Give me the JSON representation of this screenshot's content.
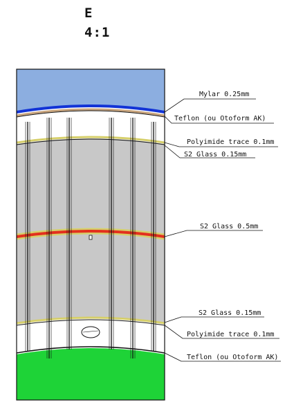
{
  "view": {
    "letter": "E",
    "scale": "4:1"
  },
  "colors": {
    "top_fill": "#8caee0",
    "bottom_fill": "#1ed337",
    "mylar": "#1233d6",
    "teflon": "#c7a37c",
    "glass_band": "#d6cf6a",
    "mid_glass": "#e3301e",
    "core": "#c8c8c8",
    "outline": "#111111"
  },
  "callouts": [
    {
      "id": "mylar",
      "text": "Mylar 0.25mm"
    },
    {
      "id": "teflon-top",
      "text": "Teflon (ou Otoform AK)"
    },
    {
      "id": "polyimide-top",
      "text": "Polyimide trace 0.1mm"
    },
    {
      "id": "glass-top",
      "text": "S2 Glass 0.15mm"
    },
    {
      "id": "glass-mid",
      "text": "S2 Glass 0.5mm"
    },
    {
      "id": "glass-bottom",
      "text": "S2 Glass 0.15mm"
    },
    {
      "id": "polyimide-bottom",
      "text": "Polyimide trace 0.1mm"
    },
    {
      "id": "teflon-bottom",
      "text": "Teflon (ou Otoform AK)"
    }
  ]
}
